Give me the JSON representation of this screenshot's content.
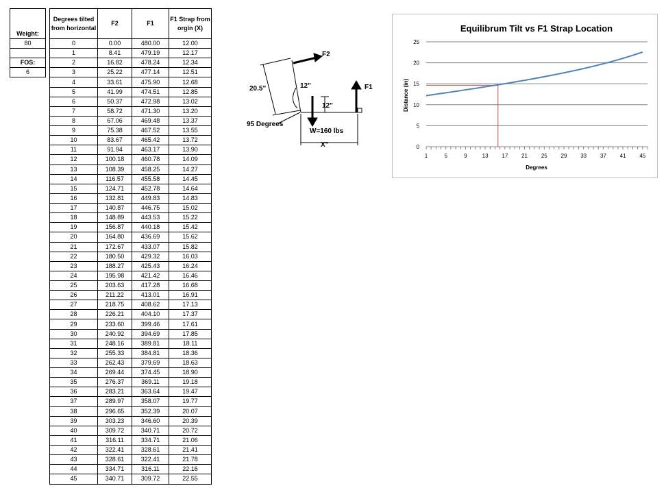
{
  "side_table": {
    "weight_label": "Weight:",
    "weight_value": "80",
    "fos_label": "FOS:",
    "fos_value": "6"
  },
  "table": {
    "headers": [
      "Degrees tilted from horizontal",
      "F2",
      "F1",
      "F1 Strap from orgin (X)"
    ],
    "rows": [
      [
        "0",
        "0.00",
        "480.00",
        "12.00"
      ],
      [
        "1",
        "8.41",
        "479.19",
        "12.17"
      ],
      [
        "2",
        "16.82",
        "478.24",
        "12.34"
      ],
      [
        "3",
        "25.22",
        "477.14",
        "12.51"
      ],
      [
        "4",
        "33.61",
        "475.90",
        "12.68"
      ],
      [
        "5",
        "41.99",
        "474.51",
        "12.85"
      ],
      [
        "6",
        "50.37",
        "472.98",
        "13.02"
      ],
      [
        "7",
        "58.72",
        "471.30",
        "13.20"
      ],
      [
        "8",
        "67.06",
        "469.48",
        "13.37"
      ],
      [
        "9",
        "75.38",
        "467.52",
        "13.55"
      ],
      [
        "10",
        "83.67",
        "465.42",
        "13.72"
      ],
      [
        "11",
        "91.94",
        "463.17",
        "13.90"
      ],
      [
        "12",
        "100.18",
        "460.78",
        "14.09"
      ],
      [
        "13",
        "108.39",
        "458.25",
        "14.27"
      ],
      [
        "14",
        "116.57",
        "455.58",
        "14.45"
      ],
      [
        "15",
        "124.71",
        "452.78",
        "14.64"
      ],
      [
        "16",
        "132.81",
        "449.83",
        "14.83"
      ],
      [
        "17",
        "140.87",
        "446.75",
        "15.02"
      ],
      [
        "18",
        "148.89",
        "443.53",
        "15.22"
      ],
      [
        "19",
        "156.87",
        "440.18",
        "15.42"
      ],
      [
        "20",
        "164.80",
        "436.69",
        "15.62"
      ],
      [
        "21",
        "172.67",
        "433.07",
        "15.82"
      ],
      [
        "22",
        "180.50",
        "429.32",
        "16.03"
      ],
      [
        "23",
        "188.27",
        "425.43",
        "16.24"
      ],
      [
        "24",
        "195.98",
        "421.42",
        "16.46"
      ],
      [
        "25",
        "203.63",
        "417.28",
        "16.68"
      ],
      [
        "26",
        "211.22",
        "413.01",
        "16.91"
      ],
      [
        "27",
        "218.75",
        "408.62",
        "17.13"
      ],
      [
        "28",
        "226.21",
        "404.10",
        "17.37"
      ],
      [
        "29",
        "233.60",
        "399.46",
        "17.61"
      ],
      [
        "30",
        "240.92",
        "394.69",
        "17.85"
      ],
      [
        "31",
        "248.16",
        "389.81",
        "18.11"
      ],
      [
        "32",
        "255.33",
        "384.81",
        "18.36"
      ],
      [
        "33",
        "262.43",
        "379.69",
        "18.63"
      ],
      [
        "34",
        "269.44",
        "374.45",
        "18.90"
      ],
      [
        "35",
        "276.37",
        "369.11",
        "19.18"
      ],
      [
        "36",
        "283.21",
        "363.64",
        "19.47"
      ],
      [
        "37",
        "289.97",
        "358.07",
        "19.77"
      ],
      [
        "38",
        "296.65",
        "352.39",
        "20.07"
      ],
      [
        "39",
        "303.23",
        "346.60",
        "20.39"
      ],
      [
        "40",
        "309.72",
        "340.71",
        "20.72"
      ],
      [
        "41",
        "316.11",
        "334.71",
        "21.06"
      ],
      [
        "42",
        "322.41",
        "328.61",
        "21.41"
      ],
      [
        "43",
        "328.61",
        "322.41",
        "21.78"
      ],
      [
        "44",
        "334.71",
        "316.11",
        "22.16"
      ],
      [
        "45",
        "340.71",
        "309.72",
        "22.55"
      ]
    ]
  },
  "diagram": {
    "label_f2": "F2",
    "label_f1": "F1",
    "label_20_5": "20.5\"",
    "label_12_a": "12\"",
    "label_12_b": "12\"",
    "label_95": "95 Degrees",
    "label_w": "W=160 lbs",
    "label_x": "X\""
  },
  "chart_data": {
    "type": "line",
    "title": "Equilibrum Tilt vs F1 Strap Location",
    "xlabel": "Degrees",
    "ylabel": "Distance (in)",
    "ylim": [
      0,
      25
    ],
    "yticks": [
      0,
      5,
      10,
      15,
      20,
      25
    ],
    "xticks": [
      1,
      5,
      9,
      13,
      17,
      21,
      25,
      29,
      33,
      37,
      41,
      45
    ],
    "grid": "horizontal",
    "line_color": "#4f81bd",
    "guide_color": "#c0504d",
    "guide_point": {
      "x": 15.6,
      "y": 14.64
    },
    "series": [
      {
        "values": [
          12.17,
          12.34,
          12.51,
          12.68,
          12.85,
          13.02,
          13.2,
          13.37,
          13.55,
          13.72,
          13.9,
          14.09,
          14.27,
          14.45,
          14.64,
          14.83,
          15.02,
          15.22,
          15.42,
          15.62,
          15.82,
          16.03,
          16.24,
          16.46,
          16.68,
          16.91,
          17.13,
          17.37,
          17.61,
          17.85,
          18.11,
          18.36,
          18.63,
          18.9,
          19.18,
          19.47,
          19.77,
          20.07,
          20.39,
          20.72,
          21.06,
          21.41,
          21.78,
          22.16,
          22.55
        ]
      }
    ]
  }
}
